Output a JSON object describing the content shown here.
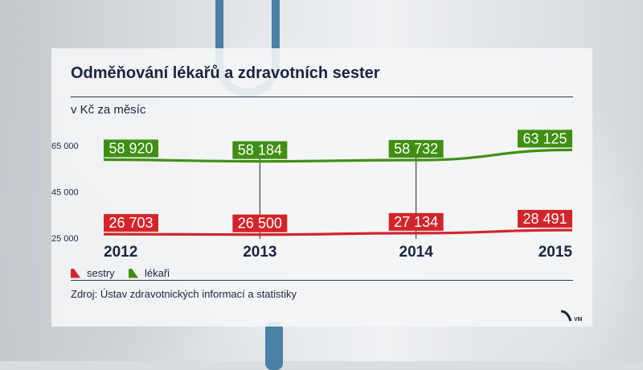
{
  "header": {
    "title": "Odměňování lékařů a zdravotních sester",
    "subtitle": "v Kč za měsíc"
  },
  "footer": {
    "source": "Zdroj: Ústav zdravotnických informací a statistiky",
    "logo_text": "VM"
  },
  "colors": {
    "lekari": "#3f8f12",
    "sestry": "#d2252b",
    "text": "#1b2540"
  },
  "chart_data": {
    "type": "line",
    "title": "Odměňování lékařů a zdravotních sester",
    "subtitle": "v Kč za měsíc",
    "x": [
      "2012",
      "2013",
      "2014",
      "2015"
    ],
    "y_ticks": [
      "65 000",
      "45 000",
      "25 000"
    ],
    "y_tick_values": [
      65000,
      45000,
      25000
    ],
    "ylim": [
      25000,
      65000
    ],
    "grid": "vertical lines at each year",
    "legend_position": "bottom-left",
    "series": [
      {
        "name": "sestry",
        "values": [
          26703,
          26500,
          27134,
          28491
        ],
        "labels": [
          "26 703",
          "26 500",
          "27 134",
          "28 491"
        ],
        "color": "#d2252b"
      },
      {
        "name": "lékaři",
        "values": [
          58920,
          58184,
          58732,
          63125
        ],
        "labels": [
          "58 920",
          "58 184",
          "58 732",
          "63 125"
        ],
        "color": "#3f8f12"
      }
    ]
  }
}
